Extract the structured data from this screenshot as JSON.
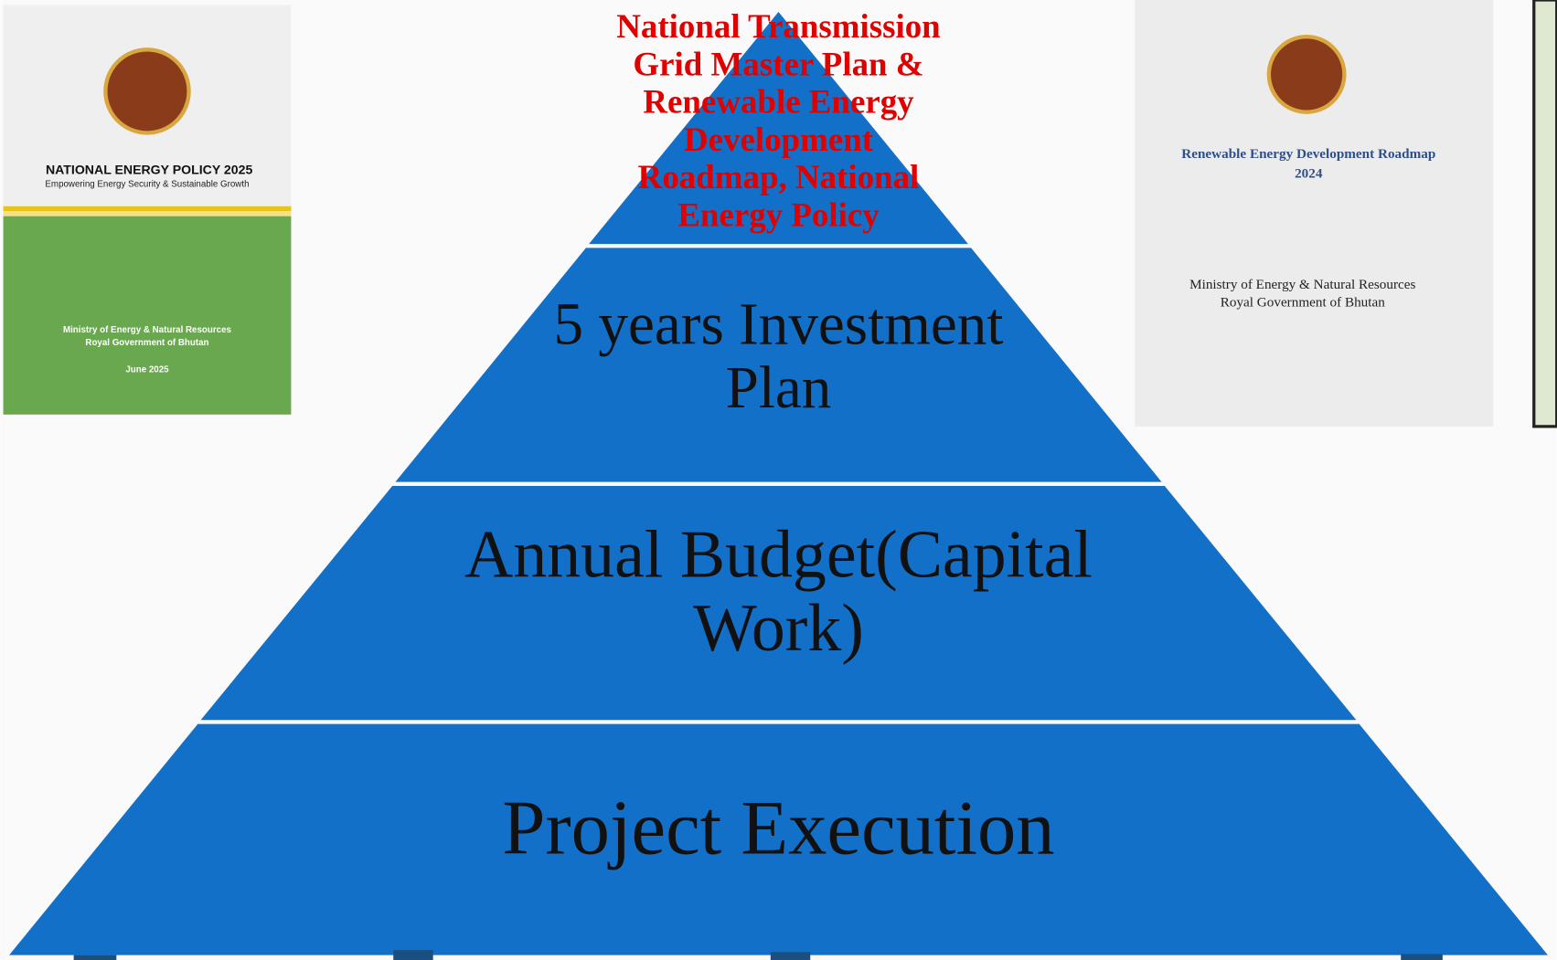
{
  "left_cover": {
    "title": "NATIONAL ENERGY POLICY 2025",
    "subtitle": "Empowering Energy Security & Sustainable Growth",
    "ministry": "Ministry of Energy & Natural Resources",
    "government": "Royal Government of Bhutan",
    "date": "June 2025"
  },
  "right_cover": {
    "title": "Renewable Energy Development Roadmap",
    "year": "2024",
    "ministry": "Ministry of Energy & Natural Resources",
    "government": "Royal Government of Bhutan"
  },
  "pyramid": {
    "levels": [
      {
        "lines": [
          "National Transmission",
          "Grid Master Plan &",
          "Renewable Energy",
          "Development",
          "Roadmap, National",
          "Energy Policy"
        ]
      },
      {
        "lines": [
          "5 years Investment",
          "Plan"
        ]
      },
      {
        "lines": [
          "Annual Budget(Capital",
          "Work)"
        ]
      },
      {
        "lines": [
          "Project Execution"
        ]
      }
    ]
  }
}
